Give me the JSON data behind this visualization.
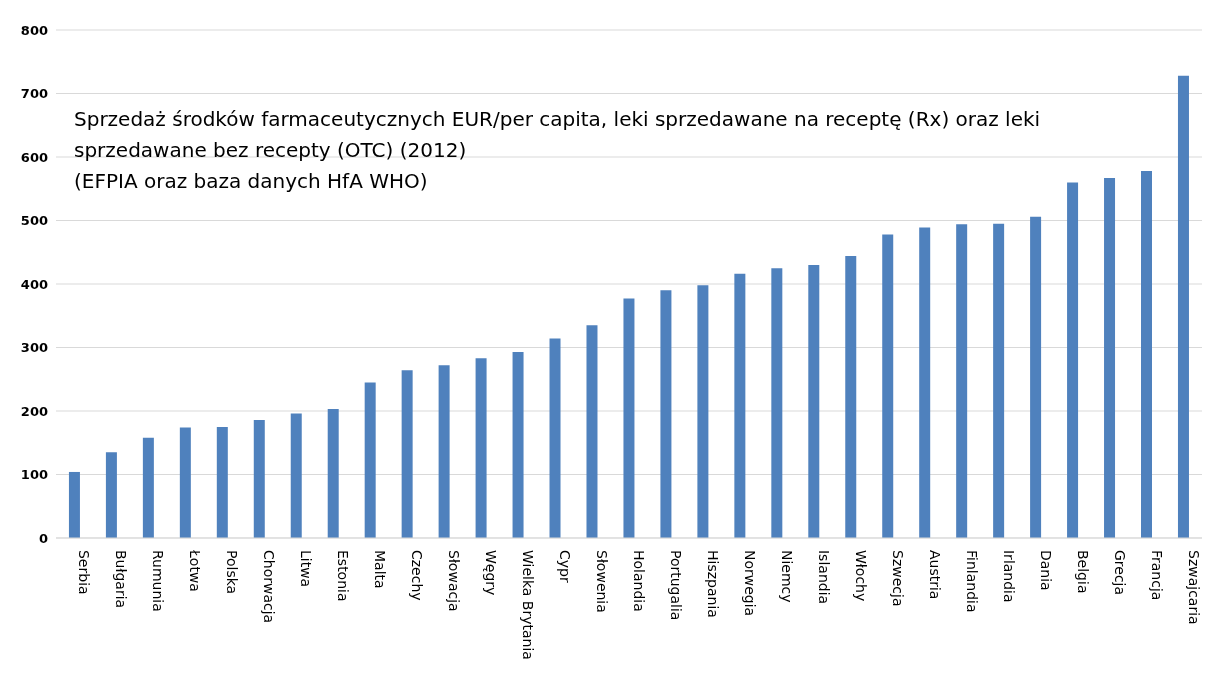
{
  "chart_data": {
    "type": "bar",
    "title": "Sprzedaż środków farmaceutycznych EUR/per capita, leki sprzedawane na receptę (Rx) oraz leki sprzedawane bez recepty (OTC) (2012)",
    "subtitle": "(EFPIA oraz baza danych HfA WHO)",
    "categories": [
      "Serbia",
      "Bułgaria",
      "Rumunia",
      "Łotwa",
      "Polska",
      "Chorwacja",
      "Litwa",
      "Estonia",
      "Malta",
      "Czechy",
      "Słowacja",
      "Węgry",
      "Wielka Brytania",
      "Cypr",
      "Słowenia",
      "Holandia",
      "Portugalia",
      "Hiszpania",
      "Norwegia",
      "Niemcy",
      "Islandia",
      "Włochy",
      "Szwecja",
      "Austria",
      "Finlandia",
      "Irlandia",
      "Dania",
      "Belgia",
      "Grecja",
      "Francja",
      "Szwajcaria"
    ],
    "values": [
      104,
      135,
      158,
      174,
      175,
      186,
      196,
      203,
      245,
      264,
      272,
      283,
      293,
      314,
      335,
      377,
      390,
      398,
      416,
      425,
      430,
      444,
      478,
      489,
      494,
      495,
      506,
      560,
      567,
      578,
      728
    ],
    "color": "#4f81bd",
    "ylim": [
      0,
      800
    ],
    "yticks": [
      0,
      100,
      200,
      300,
      400,
      500,
      600,
      700,
      800
    ],
    "grid": "y"
  }
}
